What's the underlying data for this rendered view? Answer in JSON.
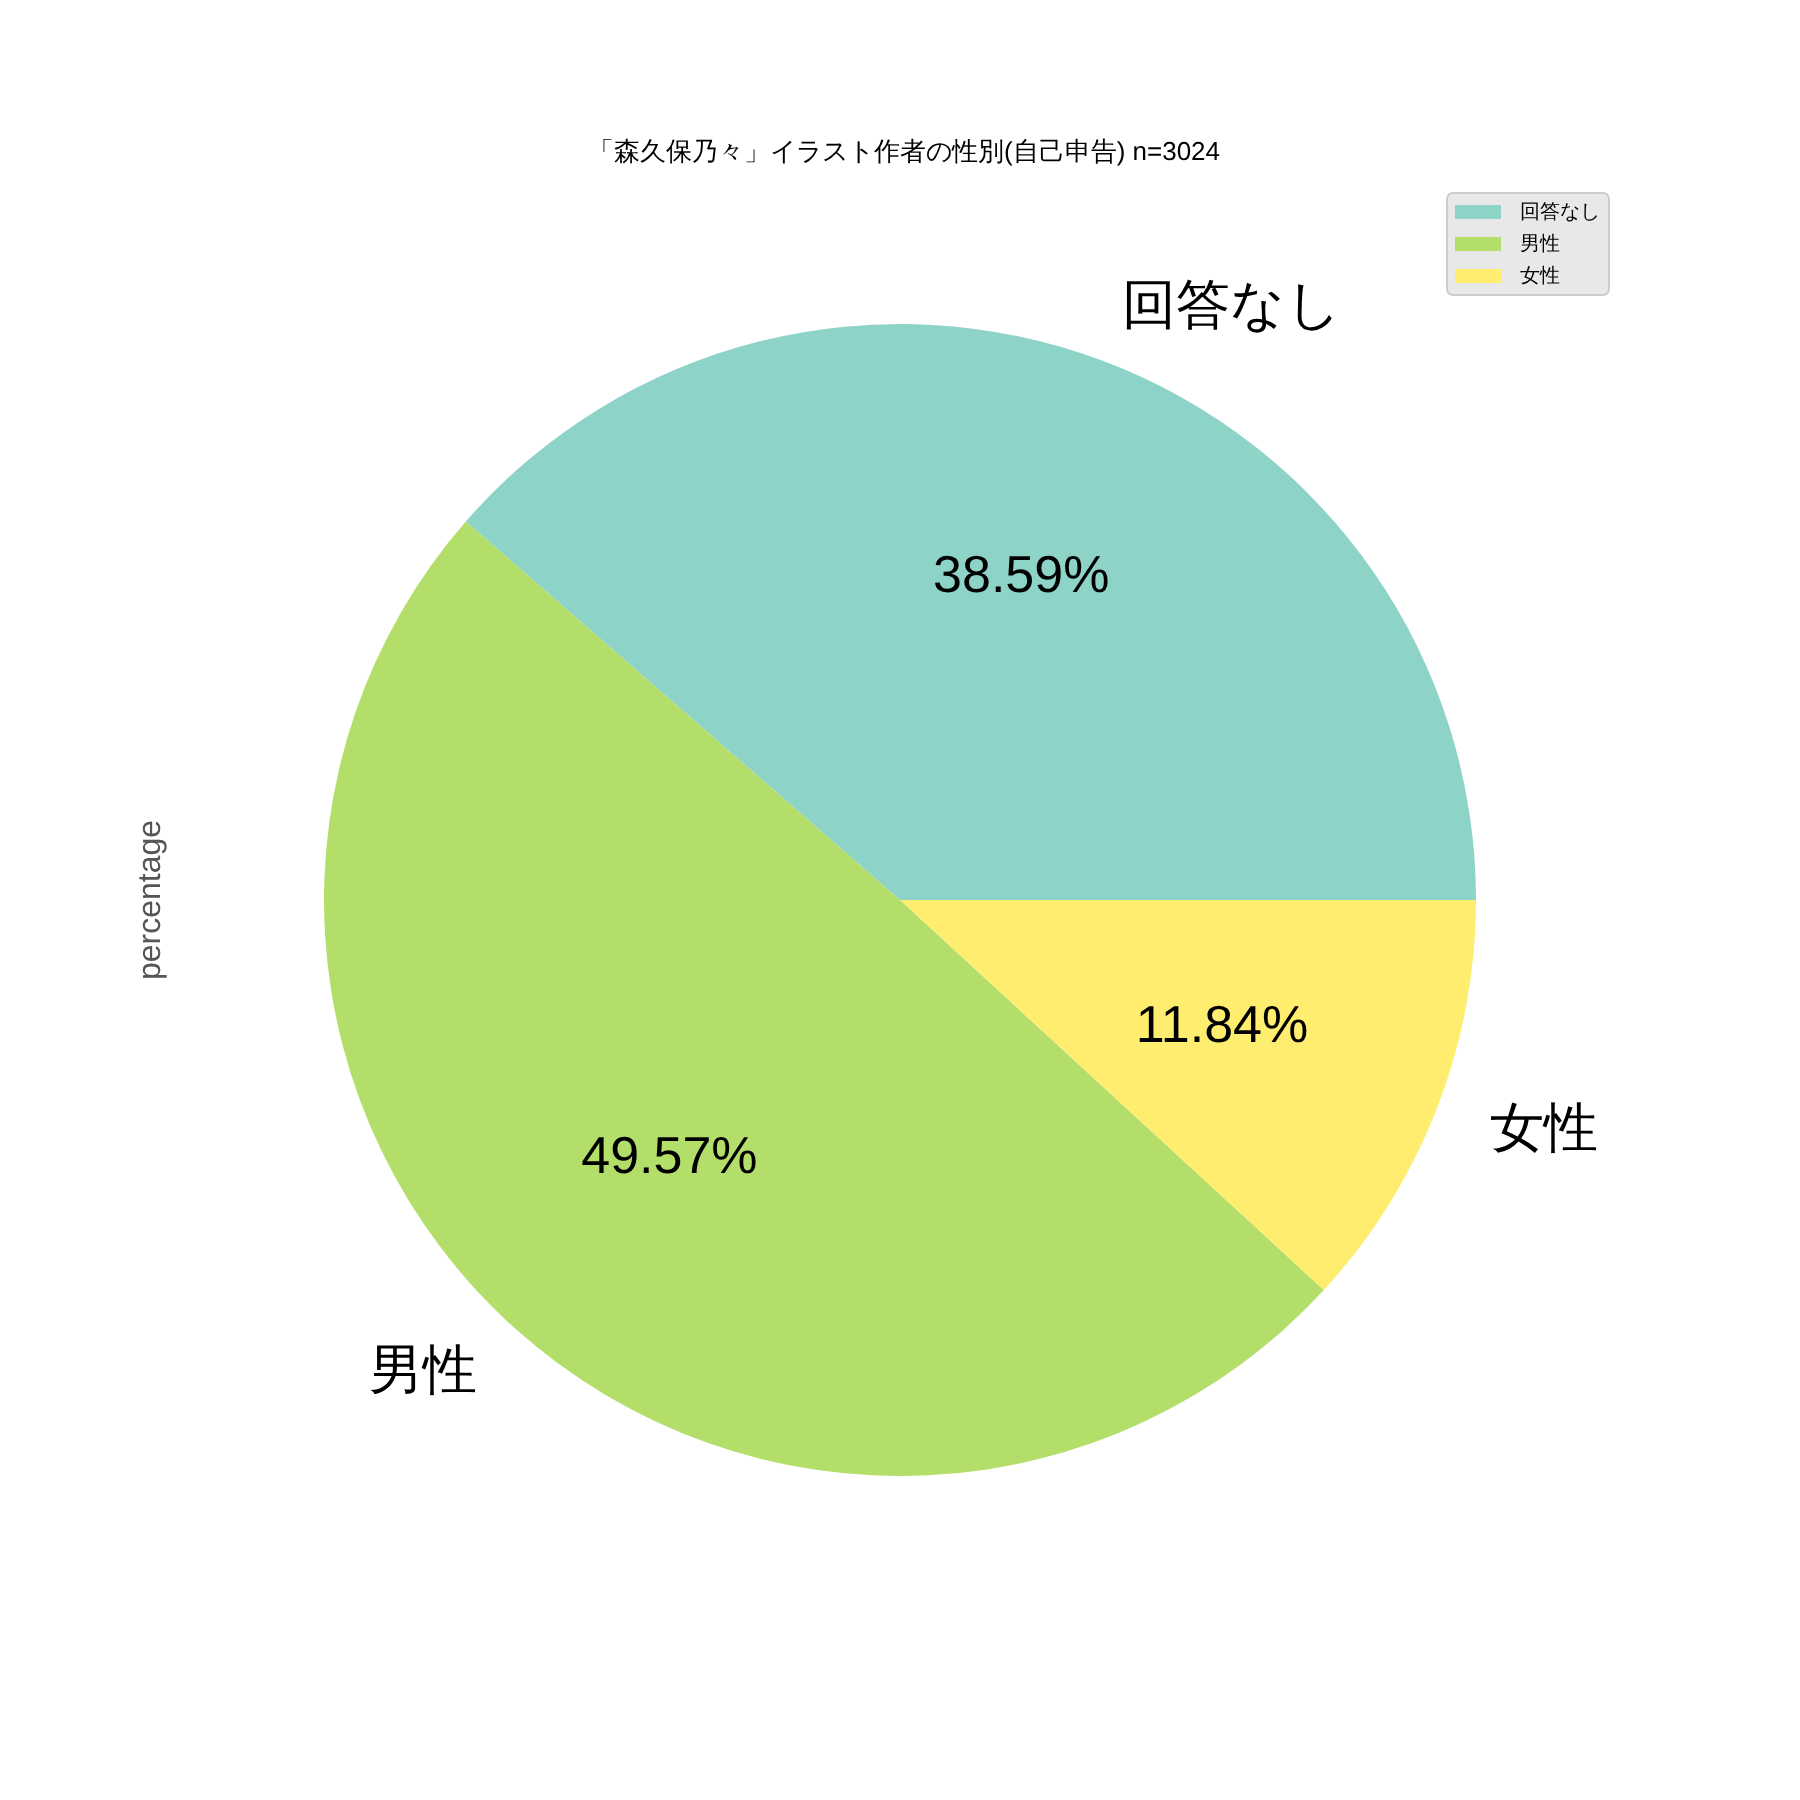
{
  "chart_data": {
    "type": "pie",
    "title": "「森久保乃々」イラスト作者の性別(自己申告) n=3024",
    "ylabel": "percentage",
    "categories": [
      "回答なし",
      "男性",
      "女性"
    ],
    "values": [
      38.59,
      49.57,
      11.84
    ],
    "colors": [
      "#8dd3c7",
      "#b3de69",
      "#ffed6f"
    ],
    "value_labels": [
      "38.59%",
      "49.57%",
      "11.84%"
    ],
    "legend": "top right"
  }
}
